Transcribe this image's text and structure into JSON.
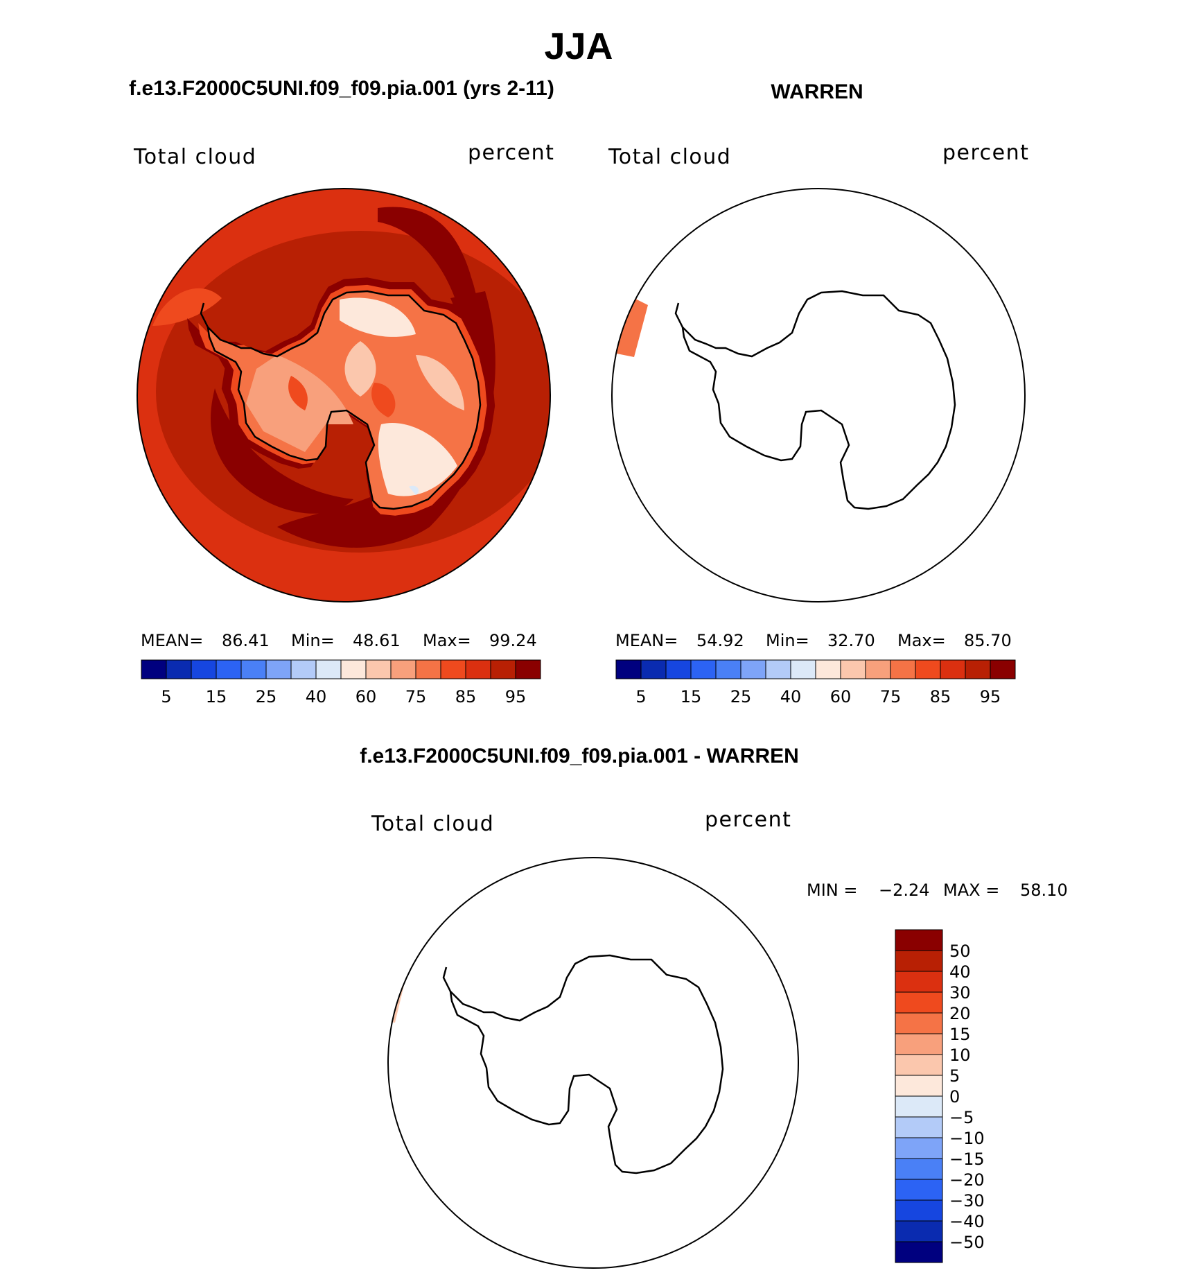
{
  "figure": {
    "title": "JJA",
    "panels": [
      {
        "heading": "f.e13.F2000C5UNI.f09_f09.pia.001 (yrs 2-11)",
        "field_label": "Total cloud",
        "units": "percent",
        "stats": {
          "mean_label": "MEAN=",
          "mean": "86.41",
          "min_label": "Min=",
          "min": "48.61",
          "max_label": "Max=",
          "max": "99.24"
        },
        "map": "filled"
      },
      {
        "heading": "WARREN",
        "field_label": "Total cloud",
        "units": "percent",
        "stats": {
          "mean_label": "MEAN=",
          "mean": "54.92",
          "min_label": "Min=",
          "min": "32.70",
          "max_label": "Max=",
          "max": "85.70"
        },
        "map": "outline"
      },
      {
        "heading": "f.e13.F2000C5UNI.f09_f09.pia.001 - WARREN",
        "field_label": "Total cloud",
        "units": "percent",
        "stats": {
          "min_label": "MIN =",
          "min": "−2.24",
          "max_label": "MAX =",
          "max": "58.10"
        },
        "map": "outline"
      }
    ],
    "horizontal_colorbar": {
      "colors": [
        "#00007f",
        "#0a2bb0",
        "#1646e0",
        "#2c63f4",
        "#4a80f6",
        "#7ea4f8",
        "#b3cbf8",
        "#dce9f8",
        "#fde8db",
        "#fbc7ad",
        "#f8a07c",
        "#f57346",
        "#ef4a1e",
        "#db3010",
        "#b82004",
        "#8a0000"
      ],
      "tick_labels": [
        "5",
        "15",
        "25",
        "40",
        "60",
        "75",
        "85",
        "95"
      ]
    },
    "vertical_colorbar": {
      "colors": [
        "#8a0000",
        "#b82004",
        "#db3010",
        "#ef4a1e",
        "#f57346",
        "#f8a07c",
        "#fbc7ad",
        "#fde8db",
        "#dce9f8",
        "#b3cbf8",
        "#7ea4f8",
        "#4a80f6",
        "#2c63f4",
        "#1646e0",
        "#0a2bb0",
        "#00007f"
      ],
      "tick_labels": [
        "50",
        "40",
        "30",
        "20",
        "15",
        "10",
        "5",
        "0",
        "−5",
        "−10",
        "−15",
        "−20",
        "−30",
        "−40",
        "−50"
      ]
    }
  }
}
